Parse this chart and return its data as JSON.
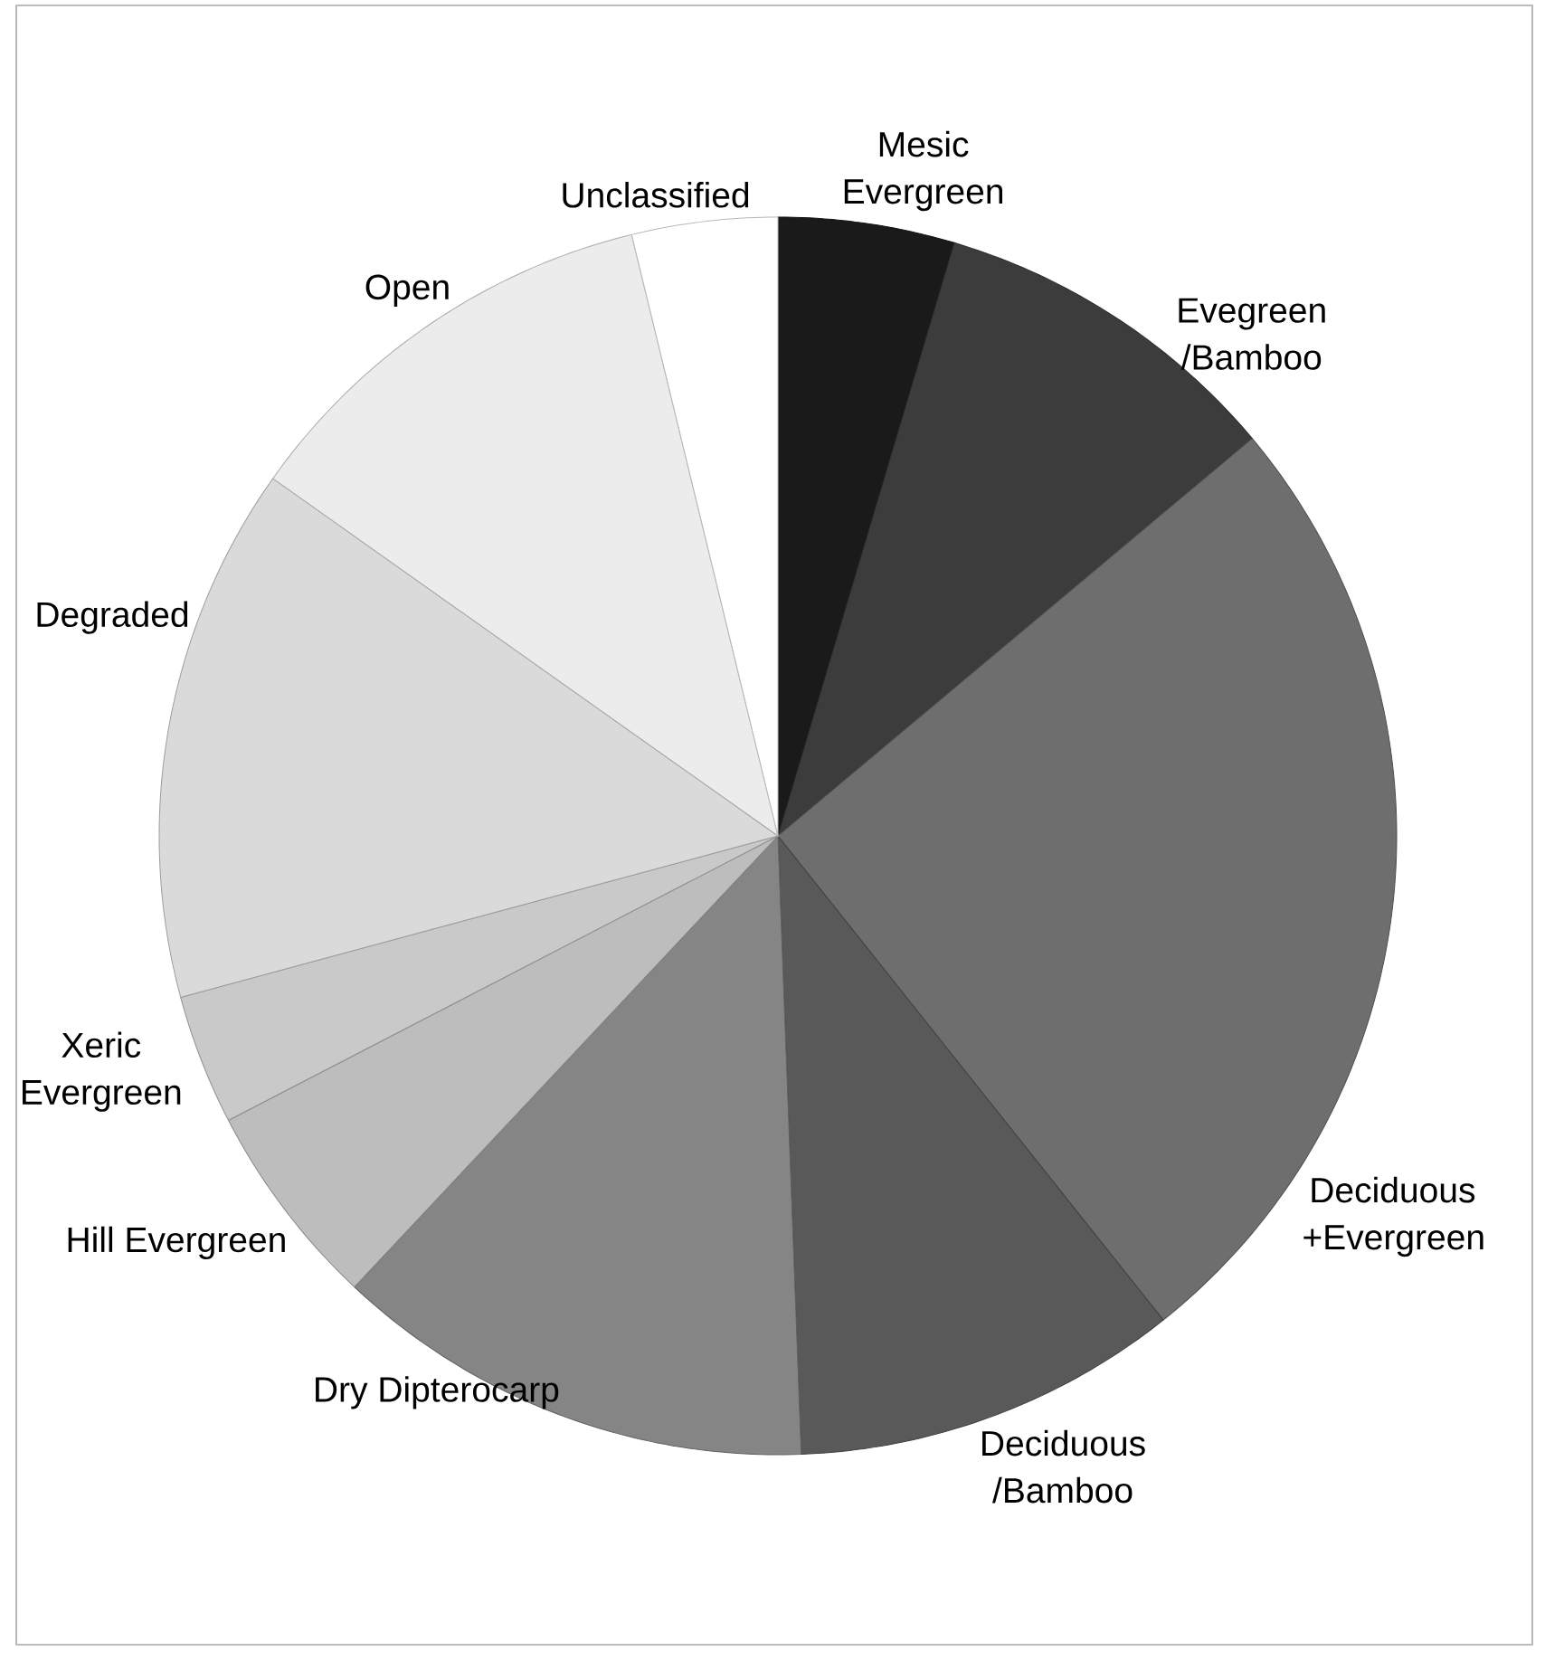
{
  "chart_data": {
    "type": "pie",
    "categories": [
      "Mesic Evergreen",
      "Evegreen /Bamboo",
      "Deciduous +Evergreen",
      "Deciduous /Bamboo",
      "Dry Dipterocarp",
      "Hill Evergreen",
      "Xeric Evergreen",
      "Degraded",
      "Open",
      "Unclassified"
    ],
    "values": [
      4.6,
      9.3,
      25.4,
      10.1,
      12.6,
      5.4,
      3.4,
      14.0,
      11.4,
      3.8
    ],
    "colors": [
      "#1a1a1a",
      "#3c3c3c",
      "#6e6e6e",
      "#595959",
      "#858585",
      "#bdbdbd",
      "#c9c9c9",
      "#dadada",
      "#ececec",
      "#ffffff"
    ]
  }
}
